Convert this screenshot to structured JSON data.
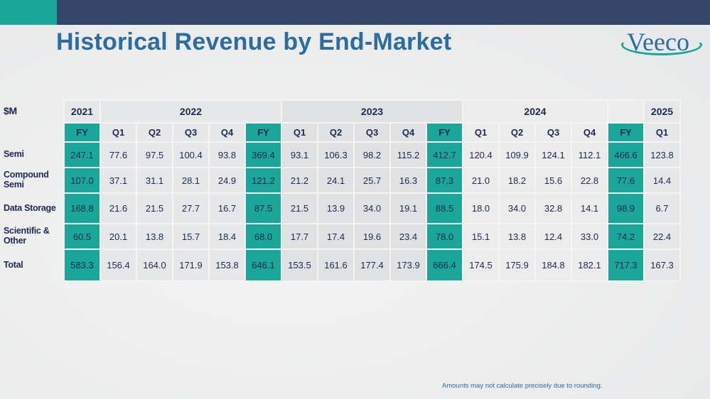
{
  "title": "Historical Revenue by End-Market",
  "logo": "Veeco",
  "table": {
    "corner": "$M",
    "years": [
      "2021",
      "2022",
      "2023",
      "2024",
      "",
      "2025"
    ],
    "periods": [
      "FY",
      "Q1",
      "Q2",
      "Q3",
      "Q4",
      "FY",
      "Q1",
      "Q2",
      "Q3",
      "Q4",
      "FY",
      "Q1",
      "Q2",
      "Q3",
      "Q4",
      "FY",
      "Q1"
    ],
    "rows": [
      {
        "label": "Semi",
        "values": [
          "247.1",
          "77.6",
          "97.5",
          "100.4",
          "93.8",
          "369.4",
          "93.1",
          "106.3",
          "98.2",
          "115.2",
          "412.7",
          "120.4",
          "109.9",
          "124.1",
          "112.1",
          "466.6",
          "123.8"
        ]
      },
      {
        "label": "Compound Semi",
        "values": [
          "107.0",
          "37.1",
          "31.1",
          "28.1",
          "24.9",
          "121.2",
          "21.2",
          "24.1",
          "25.7",
          "16.3",
          "87.3",
          "21.0",
          "18.2",
          "15.6",
          "22.8",
          "77.6",
          "14.4"
        ]
      },
      {
        "label": "Data Storage",
        "values": [
          "168.8",
          "21.6",
          "21.5",
          "27.7",
          "16.7",
          "87.5",
          "21.5",
          "13.9",
          "34.0",
          "19.1",
          "88.5",
          "18.0",
          "34.0",
          "32.8",
          "14.1",
          "98.9",
          "6.7"
        ]
      },
      {
        "label": "Scientific & Other",
        "values": [
          "60.5",
          "20.1",
          "13.8",
          "15.7",
          "18.4",
          "68.0",
          "17.7",
          "17.4",
          "19.6",
          "23.4",
          "78.0",
          "15.1",
          "13.8",
          "12.4",
          "33.0",
          "74.2",
          "22.4"
        ]
      },
      {
        "label": "Total",
        "values": [
          "583.3",
          "156.4",
          "164.0",
          "171.9",
          "153.8",
          "646.1",
          "153.5",
          "161.6",
          "177.4",
          "173.9",
          "666.4",
          "174.5",
          "175.9",
          "184.8",
          "182.1",
          "717.3",
          "167.3"
        ]
      }
    ]
  },
  "footnote": "Amounts may not calculate precisely due to rounding."
}
